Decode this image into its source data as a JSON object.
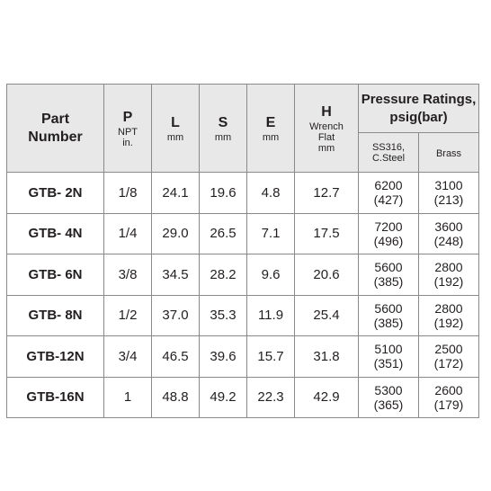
{
  "headers": {
    "part": {
      "line1": "Part",
      "line2": "Number"
    },
    "p": {
      "title": "P",
      "sub1": "NPT",
      "sub2": "in."
    },
    "l": {
      "title": "L",
      "sub": "mm"
    },
    "s": {
      "title": "S",
      "sub": "mm"
    },
    "e": {
      "title": "E",
      "sub": "mm"
    },
    "h": {
      "title": "H",
      "sub1": "Wrench",
      "sub2": "Flat",
      "sub3": "mm"
    },
    "pressure": {
      "line1": "Pressure Ratings,",
      "line2": "psig(bar)"
    },
    "ss": {
      "line1": "SS316,",
      "line2": "C.Steel"
    },
    "brass": "Brass"
  },
  "rows": [
    {
      "part": "GTB- 2N",
      "p": "1/8",
      "l": "24.1",
      "s": "19.6",
      "e": "4.8",
      "h": "12.7",
      "ss_psig": "6200",
      "ss_bar": "(427)",
      "brass_psig": "3100",
      "brass_bar": "(213)"
    },
    {
      "part": "GTB- 4N",
      "p": "1/4",
      "l": "29.0",
      "s": "26.5",
      "e": "7.1",
      "h": "17.5",
      "ss_psig": "7200",
      "ss_bar": "(496)",
      "brass_psig": "3600",
      "brass_bar": "(248)"
    },
    {
      "part": "GTB- 6N",
      "p": "3/8",
      "l": "34.5",
      "s": "28.2",
      "e": "9.6",
      "h": "20.6",
      "ss_psig": "5600",
      "ss_bar": "(385)",
      "brass_psig": "2800",
      "brass_bar": "(192)"
    },
    {
      "part": "GTB- 8N",
      "p": "1/2",
      "l": "37.0",
      "s": "35.3",
      "e": "11.9",
      "h": "25.4",
      "ss_psig": "5600",
      "ss_bar": "(385)",
      "brass_psig": "2800",
      "brass_bar": "(192)"
    },
    {
      "part": "GTB-12N",
      "p": "3/4",
      "l": "46.5",
      "s": "39.6",
      "e": "15.7",
      "h": "31.8",
      "ss_psig": "5100",
      "ss_bar": "(351)",
      "brass_psig": "2500",
      "brass_bar": "(172)"
    },
    {
      "part": "GTB-16N",
      "p": "1",
      "l": "48.8",
      "s": "49.2",
      "e": "22.3",
      "h": "42.9",
      "ss_psig": "5300",
      "ss_bar": "(365)",
      "brass_psig": "2600",
      "brass_bar": "(179)"
    }
  ]
}
